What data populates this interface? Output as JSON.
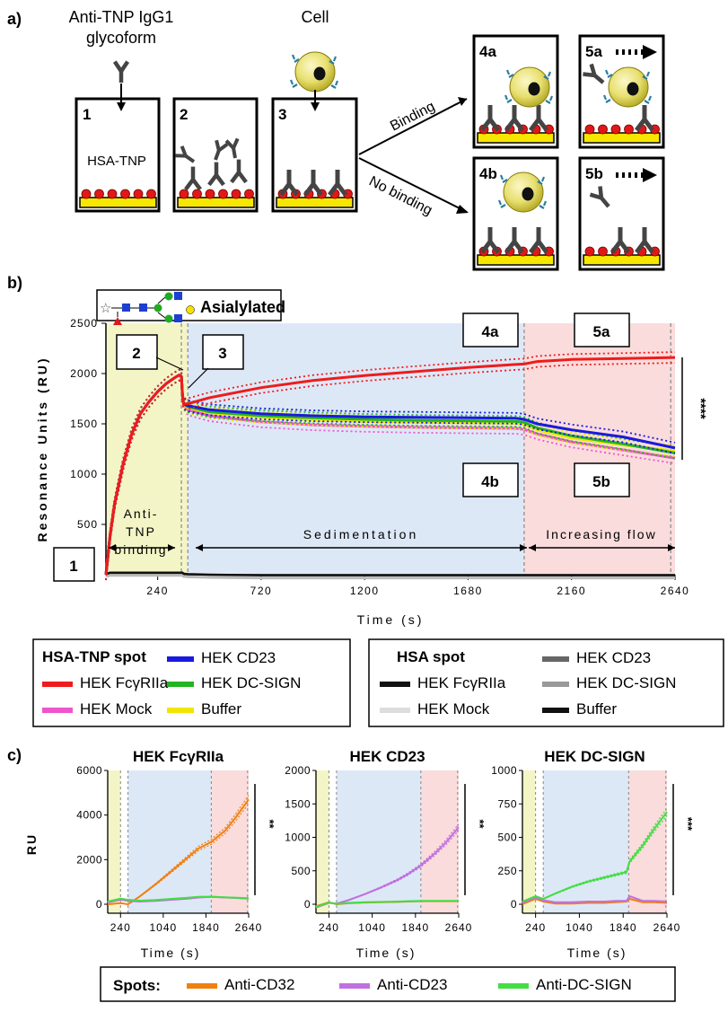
{
  "panel_labels": {
    "a": "a)",
    "b": "b)",
    "c": "c)"
  },
  "schematic": {
    "antibody_label_1": "Anti-TNP IgG1",
    "antibody_label_2": "glycoform",
    "cell_label": "Cell",
    "boxes": [
      "1",
      "2",
      "3",
      "4a",
      "4b",
      "5a",
      "5b"
    ],
    "hsa_label": "HSA-TNP",
    "binding": "Binding",
    "no_binding": "No binding"
  },
  "panel_b": {
    "glycan_label": "Asialylated",
    "callouts": [
      "1",
      "2",
      "3",
      "4a",
      "4b",
      "5a",
      "5b"
    ],
    "phase_labels": {
      "anti_tnp_1": "Anti-",
      "anti_tnp_2": "TNP",
      "anti_tnp_3": "binding",
      "sedimentation": "Sedimentation",
      "increasing_flow": "Increasing flow"
    },
    "significance": "****",
    "legend_left": {
      "title": "HSA-TNP spot",
      "items": [
        "HEK CD23",
        "HEK FcγRIIa",
        "HEK DC-SIGN",
        "HEK Mock",
        "Buffer"
      ]
    },
    "legend_right": {
      "title": "HSA spot",
      "items": [
        "HEK CD23",
        "HEK FcγRIIa",
        "HEK DC-SIGN",
        "HEK Mock",
        "Buffer"
      ]
    }
  },
  "panel_c": {
    "significance": [
      "**",
      "**",
      "***"
    ],
    "legend": {
      "title": "Spots:",
      "items": [
        "Anti-CD32",
        "Anti-CD23",
        "Anti-DC-SIGN"
      ]
    }
  },
  "colors": {
    "fcgr": "#ee1c1c",
    "cd23": "#1a1adf",
    "dcsign": "#22b422",
    "mock": "#ee55cc",
    "buffer": "#f2e600",
    "hsa_dark": "#111111",
    "hsa_grey": "#666666",
    "hsa_light": "#bbbbbb",
    "anti_cd32": "#f08010",
    "anti_cd23": "#c070e0",
    "anti_dcsign": "#44dd44",
    "phase_yellow": "#f3f5c6",
    "phase_blue": "#dde8f7",
    "phase_red": "#fadcdc",
    "surface_yellow": "#f6e600",
    "tnp_red": "#e11818",
    "antibody": "#444444",
    "cell": "#e8e070"
  },
  "chart_data": [
    {
      "type": "line",
      "title": "",
      "xlabel": "Time (s)",
      "ylabel": "Resonance Units (RU)",
      "xlim": [
        0,
        2640
      ],
      "ylim": [
        0,
        2500
      ],
      "xticks": [
        240,
        720,
        1200,
        1680,
        2160,
        2640
      ],
      "yticks": [
        500,
        1000,
        1500,
        2000,
        2500
      ],
      "phases": [
        {
          "name": "Anti-TNP binding",
          "x": [
            0,
            380
          ],
          "color": "yellow"
        },
        {
          "name": "Sedimentation",
          "x": [
            380,
            1940
          ],
          "color": "blue"
        },
        {
          "name": "Increasing flow",
          "x": [
            1940,
            2640
          ],
          "color": "red"
        }
      ],
      "x": [
        0,
        20,
        40,
        80,
        120,
        160,
        200,
        240,
        280,
        320,
        340,
        350,
        355,
        360,
        380,
        480,
        720,
        960,
        1200,
        1440,
        1680,
        1900,
        1940,
        2000,
        2160,
        2400,
        2640
      ],
      "series": [
        {
          "name": "HEK FcγRIIa",
          "values": [
            0,
            400,
            700,
            1100,
            1400,
            1600,
            1720,
            1820,
            1900,
            1960,
            1985,
            1970,
            1780,
            1700,
            1700,
            1760,
            1860,
            1930,
            1980,
            2020,
            2060,
            2090,
            2095,
            2120,
            2140,
            2150,
            2160
          ]
        },
        {
          "name": "HEK CD23",
          "values": [
            0,
            400,
            700,
            1100,
            1400,
            1600,
            1720,
            1820,
            1900,
            1960,
            1985,
            1970,
            1780,
            1700,
            1680,
            1640,
            1600,
            1580,
            1570,
            1565,
            1560,
            1555,
            1545,
            1500,
            1440,
            1370,
            1260
          ]
        },
        {
          "name": "HEK DC-SIGN",
          "values": [
            0,
            400,
            700,
            1100,
            1400,
            1600,
            1720,
            1820,
            1900,
            1960,
            1985,
            1970,
            1780,
            1700,
            1670,
            1620,
            1580,
            1560,
            1545,
            1535,
            1530,
            1525,
            1515,
            1460,
            1380,
            1300,
            1210
          ]
        },
        {
          "name": "Buffer",
          "values": [
            0,
            400,
            700,
            1100,
            1400,
            1600,
            1720,
            1820,
            1900,
            1960,
            1985,
            1970,
            1780,
            1700,
            1660,
            1610,
            1565,
            1540,
            1525,
            1515,
            1510,
            1505,
            1495,
            1440,
            1360,
            1290,
            1230
          ]
        },
        {
          "name": "HEK Mock",
          "values": [
            0,
            400,
            700,
            1100,
            1400,
            1600,
            1720,
            1820,
            1900,
            1960,
            1985,
            1970,
            1780,
            1700,
            1640,
            1580,
            1520,
            1490,
            1475,
            1465,
            1460,
            1455,
            1445,
            1400,
            1320,
            1240,
            1160
          ]
        }
      ],
      "reference_series": [
        {
          "name": "HSA spot",
          "values": [
            10,
            20,
            20,
            20,
            20,
            20,
            20,
            20,
            20,
            20,
            20,
            20,
            20,
            10,
            5,
            0,
            -5,
            -5,
            -5,
            -5,
            -5,
            -5,
            -5,
            -5,
            -5,
            -5,
            -5
          ]
        }
      ]
    },
    {
      "type": "line",
      "title": "HEK FcγRIIa",
      "xlabel": "Time (s)",
      "ylabel": "RU",
      "xlim": [
        0,
        2640
      ],
      "ylim": [
        0,
        6000
      ],
      "xticks": [
        240,
        1040,
        1840,
        2640
      ],
      "yticks": [
        0,
        2000,
        4000,
        6000
      ],
      "x": [
        0,
        240,
        380,
        600,
        900,
        1200,
        1500,
        1700,
        1940,
        2200,
        2400,
        2640
      ],
      "series": [
        {
          "name": "Anti-CD32",
          "values": [
            0,
            50,
            0,
            350,
            900,
            1500,
            2100,
            2500,
            2800,
            3300,
            3900,
            4700
          ]
        },
        {
          "name": "Anti-CD23",
          "values": [
            80,
            200,
            150,
            120,
            150,
            200,
            250,
            300,
            330,
            300,
            280,
            250
          ]
        },
        {
          "name": "Anti-DC-SIGN",
          "values": [
            120,
            250,
            200,
            160,
            190,
            240,
            290,
            330,
            340,
            310,
            290,
            270
          ]
        }
      ]
    },
    {
      "type": "line",
      "title": "HEK CD23",
      "xlabel": "Time (s)",
      "ylabel": "",
      "xlim": [
        0,
        2640
      ],
      "ylim": [
        0,
        2000
      ],
      "xticks": [
        240,
        1040,
        1840,
        2640
      ],
      "yticks": [
        0,
        500,
        1000,
        1500,
        2000
      ],
      "x": [
        0,
        240,
        380,
        600,
        900,
        1200,
        1500,
        1700,
        1940,
        2200,
        2400,
        2640
      ],
      "series": [
        {
          "name": "Anti-CD32",
          "values": [
            -30,
            30,
            0,
            15,
            25,
            30,
            35,
            40,
            45,
            45,
            45,
            45
          ]
        },
        {
          "name": "Anti-CD23",
          "values": [
            -50,
            20,
            10,
            60,
            150,
            250,
            360,
            450,
            580,
            760,
            920,
            1150
          ]
        },
        {
          "name": "Anti-DC-SIGN",
          "values": [
            -40,
            25,
            5,
            20,
            30,
            35,
            40,
            45,
            50,
            50,
            50,
            50
          ]
        }
      ]
    },
    {
      "type": "line",
      "title": "HEK DC-SIGN",
      "xlabel": "Time (s)",
      "ylabel": "",
      "xlim": [
        0,
        2640
      ],
      "ylim": [
        0,
        1000
      ],
      "xticks": [
        240,
        1040,
        1840,
        2640
      ],
      "yticks": [
        0,
        250,
        500,
        750,
        1000
      ],
      "x": [
        0,
        240,
        380,
        600,
        900,
        1200,
        1500,
        1700,
        1900,
        1960,
        2200,
        2400,
        2640
      ],
      "series": [
        {
          "name": "Anti-CD32",
          "values": [
            0,
            40,
            20,
            5,
            5,
            10,
            10,
            15,
            20,
            40,
            15,
            15,
            10
          ]
        },
        {
          "name": "Anti-CD23",
          "values": [
            10,
            50,
            30,
            15,
            15,
            20,
            20,
            25,
            25,
            60,
            25,
            25,
            20
          ]
        },
        {
          "name": "Anti-DC-SIGN",
          "values": [
            20,
            60,
            40,
            80,
            130,
            170,
            200,
            220,
            240,
            320,
            440,
            560,
            690
          ]
        }
      ]
    }
  ]
}
